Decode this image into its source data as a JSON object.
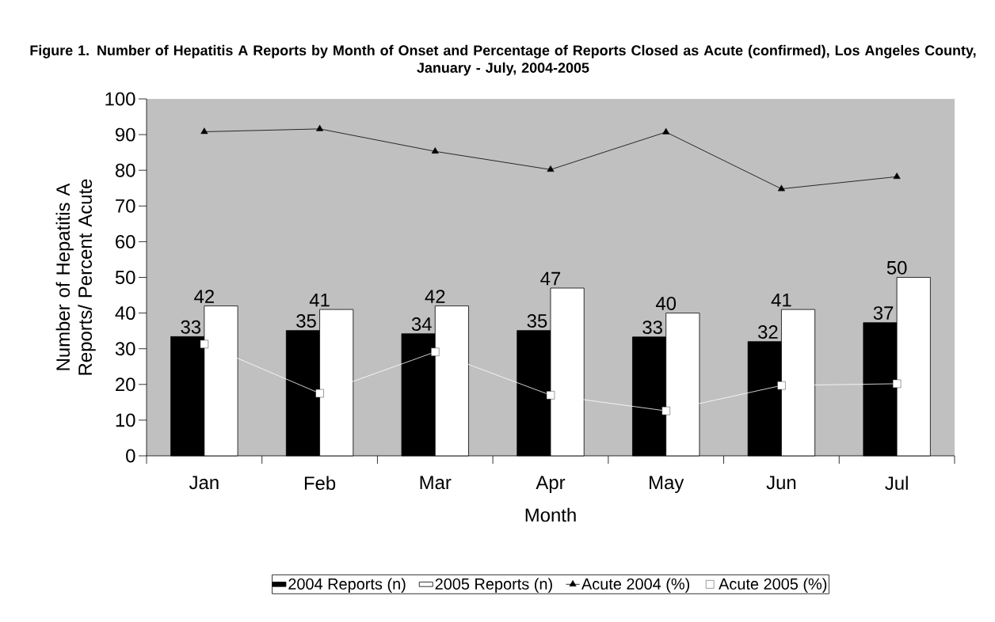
{
  "chart_data": {
    "type": "bar",
    "title": "Figure 1. Number of Hepatitis A Reports by Month of Onset and Percentage of Reports Closed as Acute (confirmed), Los Angeles County, January - July, 2004-2005",
    "xlabel": "Month",
    "ylabel": "Number of Hepatitis A Reports/ Percent Acute",
    "categories": [
      "Jan",
      "Feb",
      "Mar",
      "Apr",
      "May",
      "Jun",
      "Jul"
    ],
    "ylim": [
      0,
      100
    ],
    "yticks": [
      0,
      10,
      20,
      30,
      40,
      50,
      60,
      70,
      80,
      90,
      100
    ],
    "grid": false,
    "legend": "bottom",
    "series": [
      {
        "name": "2004 Reports (n)",
        "color": "#000000",
        "values": [
          33.4,
          35.1,
          34.2,
          35.1,
          33.3,
          32,
          37.3
        ],
        "value_labels": [
          "33",
          "35",
          "34",
          "35",
          "33",
          "32",
          "37"
        ]
      },
      {
        "name": "2005 Reports (n)",
        "color": "#ffffff",
        "values": [
          42,
          41,
          42,
          47,
          40,
          41,
          50
        ],
        "value_labels": [
          "42",
          "41",
          "42",
          "47",
          "40",
          "41",
          "50"
        ]
      },
      {
        "name": "Acute 2004 (%)",
        "type": "line",
        "color": "#000000",
        "marker": "triangle",
        "values": [
          90.8,
          91.6,
          85.3,
          80.2,
          90.7,
          74.8,
          78.2
        ]
      },
      {
        "name": "Acute 2005 (%)",
        "type": "line",
        "color": "#ffffff",
        "marker": "square",
        "values": [
          31.3,
          17.5,
          29.1,
          17.0,
          12.6,
          19.7,
          20.2
        ]
      }
    ]
  }
}
